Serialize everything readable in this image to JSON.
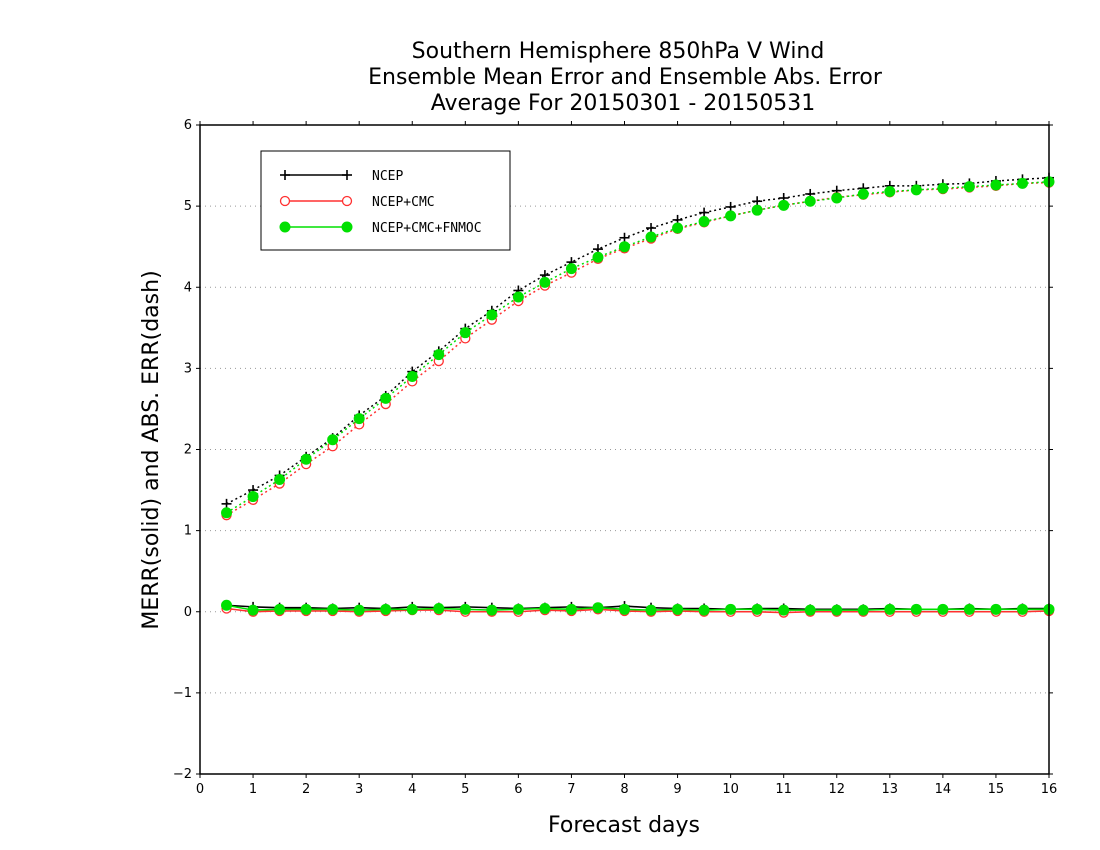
{
  "chart_data": {
    "type": "line",
    "title": [
      "Southern Hemisphere 850hPa V Wind",
      "Ensemble Mean Error and Ensemble Abs. Error",
      "Average For 20150301 - 20150531"
    ],
    "xlabel": "Forecast days",
    "ylabel": "MERR(solid) and ABS. ERR(dash)",
    "xlim": [
      0,
      16
    ],
    "ylim": [
      -2,
      6
    ],
    "xticks": [
      0,
      1,
      2,
      3,
      4,
      5,
      6,
      7,
      8,
      9,
      10,
      11,
      12,
      13,
      14,
      15,
      16
    ],
    "yticks": [
      -2,
      -1,
      0,
      1,
      2,
      3,
      4,
      5,
      6
    ],
    "grid": "horizontal dotted",
    "legend_position": "top-left",
    "x": [
      0.5,
      1,
      1.5,
      2,
      2.5,
      3,
      3.5,
      4,
      4.5,
      5,
      5.5,
      6,
      6.5,
      7,
      7.5,
      8,
      8.5,
      9,
      9.5,
      10,
      10.5,
      11,
      11.5,
      12,
      12.5,
      13,
      13.5,
      14,
      14.5,
      15,
      15.5,
      16
    ],
    "series": [
      {
        "name": "NCEP",
        "color": "#000000",
        "marker": "plus",
        "merr": [
          0.08,
          0.06,
          0.05,
          0.05,
          0.04,
          0.05,
          0.04,
          0.06,
          0.05,
          0.06,
          0.05,
          0.04,
          0.05,
          0.06,
          0.05,
          0.07,
          0.05,
          0.04,
          0.04,
          0.03,
          0.04,
          0.04,
          0.03,
          0.03,
          0.03,
          0.04,
          0.03,
          0.03,
          0.04,
          0.03,
          0.04,
          0.04
        ],
        "abs_err": [
          1.33,
          1.5,
          1.68,
          1.91,
          2.14,
          2.42,
          2.66,
          2.96,
          3.21,
          3.49,
          3.71,
          3.96,
          4.15,
          4.31,
          4.47,
          4.61,
          4.73,
          4.83,
          4.92,
          4.99,
          5.06,
          5.1,
          5.15,
          5.19,
          5.22,
          5.25,
          5.25,
          5.27,
          5.28,
          5.31,
          5.33,
          5.35
        ]
      },
      {
        "name": "NCEP+CMC",
        "color": "#ff3030",
        "marker": "open-circle",
        "merr": [
          0.04,
          0.0,
          0.01,
          0.01,
          0.01,
          0.0,
          0.01,
          0.02,
          0.02,
          0.0,
          0.0,
          0.0,
          0.02,
          0.01,
          0.03,
          0.01,
          0.0,
          0.01,
          0.0,
          0.0,
          0.0,
          -0.01,
          0.0,
          0.0,
          0.0,
          0.0,
          0.0,
          0.0,
          0.0,
          0.0,
          0.0,
          0.01
        ],
        "abs_err": [
          1.19,
          1.38,
          1.58,
          1.82,
          2.04,
          2.31,
          2.56,
          2.84,
          3.09,
          3.37,
          3.6,
          3.83,
          4.02,
          4.18,
          4.35,
          4.48,
          4.6,
          4.72,
          4.8,
          4.88,
          4.95,
          5.01,
          5.06,
          5.11,
          5.14,
          5.17,
          5.2,
          5.21,
          5.23,
          5.25,
          5.28,
          5.29
        ]
      },
      {
        "name": "NCEP+CMC+FNMOC",
        "color": "#00e000",
        "marker": "filled-circle",
        "merr": [
          0.08,
          0.02,
          0.03,
          0.03,
          0.03,
          0.02,
          0.03,
          0.03,
          0.04,
          0.03,
          0.02,
          0.03,
          0.04,
          0.03,
          0.05,
          0.03,
          0.02,
          0.03,
          0.02,
          0.03,
          0.03,
          0.02,
          0.02,
          0.02,
          0.02,
          0.03,
          0.03,
          0.03,
          0.03,
          0.03,
          0.03,
          0.03
        ],
        "abs_err": [
          1.22,
          1.42,
          1.63,
          1.88,
          2.12,
          2.38,
          2.63,
          2.9,
          3.17,
          3.44,
          3.66,
          3.88,
          4.06,
          4.23,
          4.37,
          4.5,
          4.62,
          4.73,
          4.81,
          4.88,
          4.95,
          5.01,
          5.06,
          5.1,
          5.15,
          5.18,
          5.2,
          5.22,
          5.24,
          5.26,
          5.28,
          5.3
        ]
      }
    ]
  }
}
